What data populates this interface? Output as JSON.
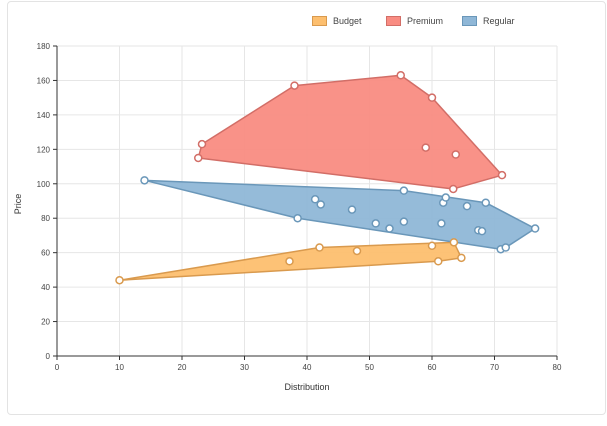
{
  "colors": {
    "Budget": {
      "fill": "#fdbf6f",
      "stroke": "#d99a4e"
    },
    "Premium": {
      "fill": "#f98c82",
      "stroke": "#d26e67"
    },
    "Regular": {
      "fill": "#8fb7d7",
      "stroke": "#6a97b9"
    }
  },
  "chart_data": {
    "type": "scatter",
    "xlabel": "Distribution",
    "ylabel": "Price",
    "xlim": [
      0,
      80
    ],
    "ylim": [
      0,
      180
    ],
    "x_ticks": [
      0,
      10,
      20,
      30,
      40,
      50,
      60,
      70,
      80
    ],
    "y_ticks": [
      0,
      20,
      40,
      60,
      80,
      100,
      120,
      140,
      160,
      180
    ],
    "grid": true,
    "legend_position": "top-right",
    "hull_areas": true,
    "series": [
      {
        "name": "Budget",
        "points": [
          [
            10,
            44
          ],
          [
            37.2,
            55
          ],
          [
            42,
            63
          ],
          [
            48,
            61
          ],
          [
            60,
            64
          ],
          [
            61,
            55
          ],
          [
            63.5,
            66
          ],
          [
            64.7,
            57
          ]
        ]
      },
      {
        "name": "Premium",
        "points": [
          [
            23.2,
            123
          ],
          [
            22.6,
            115
          ],
          [
            38,
            157
          ],
          [
            55,
            163
          ],
          [
            60,
            150
          ],
          [
            59,
            121
          ],
          [
            63.8,
            117
          ],
          [
            63.4,
            97
          ],
          [
            71.2,
            105
          ]
        ]
      },
      {
        "name": "Regular",
        "points": [
          [
            14,
            102
          ],
          [
            38.5,
            80
          ],
          [
            41.3,
            91
          ],
          [
            42.2,
            88
          ],
          [
            47.2,
            85
          ],
          [
            51,
            77
          ],
          [
            53.2,
            74
          ],
          [
            55.5,
            78
          ],
          [
            55.5,
            96
          ],
          [
            61.5,
            77
          ],
          [
            61.8,
            89
          ],
          [
            62.2,
            92
          ],
          [
            65.6,
            87
          ],
          [
            67.4,
            73
          ],
          [
            68,
            72.5
          ],
          [
            68.6,
            89
          ],
          [
            71,
            62
          ],
          [
            71.8,
            63
          ],
          [
            76.5,
            74
          ]
        ]
      }
    ]
  }
}
